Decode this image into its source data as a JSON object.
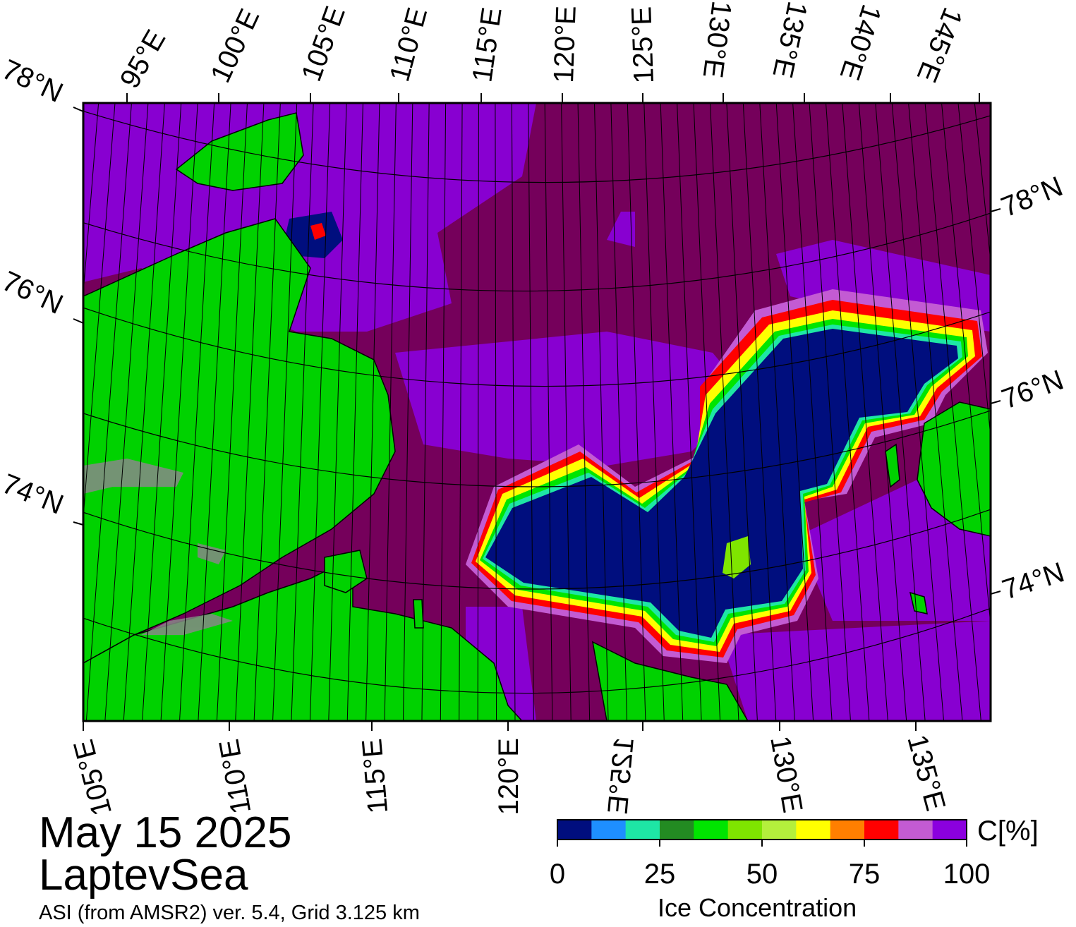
{
  "map": {
    "date": "May 15 2025",
    "region": "LaptevSea",
    "product": "ASI (from AMSR2) ver. 5.4,  Grid 3.125 km"
  },
  "graticule": {
    "top_lon_labels": [
      "95°E",
      "100°E",
      "105°E",
      "110°E",
      "115°E",
      "120°E",
      "125°E",
      "130°E",
      "135°E",
      "140°E",
      "145°E"
    ],
    "bottom_lon_labels": [
      "105°E",
      "110°E",
      "115°E",
      "120°E",
      "125°E",
      "130°E",
      "135°E"
    ],
    "left_lat_labels": [
      "78°N",
      "76°N",
      "74°N"
    ],
    "right_lat_labels": [
      "78°N",
      "76°N",
      "74°N"
    ]
  },
  "colorbar": {
    "title": "Ice Concentration",
    "unit": "C[%]",
    "ticks": [
      "0",
      "25",
      "50",
      "75",
      "100"
    ],
    "colors": [
      "#000e7e",
      "#1e8fff",
      "#1ee6a5",
      "#238b22",
      "#00e500",
      "#7fe500",
      "#b4ef3c",
      "#ffff00",
      "#ff7f00",
      "#ff0000",
      "#c35bd3",
      "#8b00de"
    ]
  },
  "legend_colors": {
    "land": "#00d200",
    "coast_mask": "#888888",
    "ice_100": "#75005b",
    "open_water": "#000e7e"
  }
}
